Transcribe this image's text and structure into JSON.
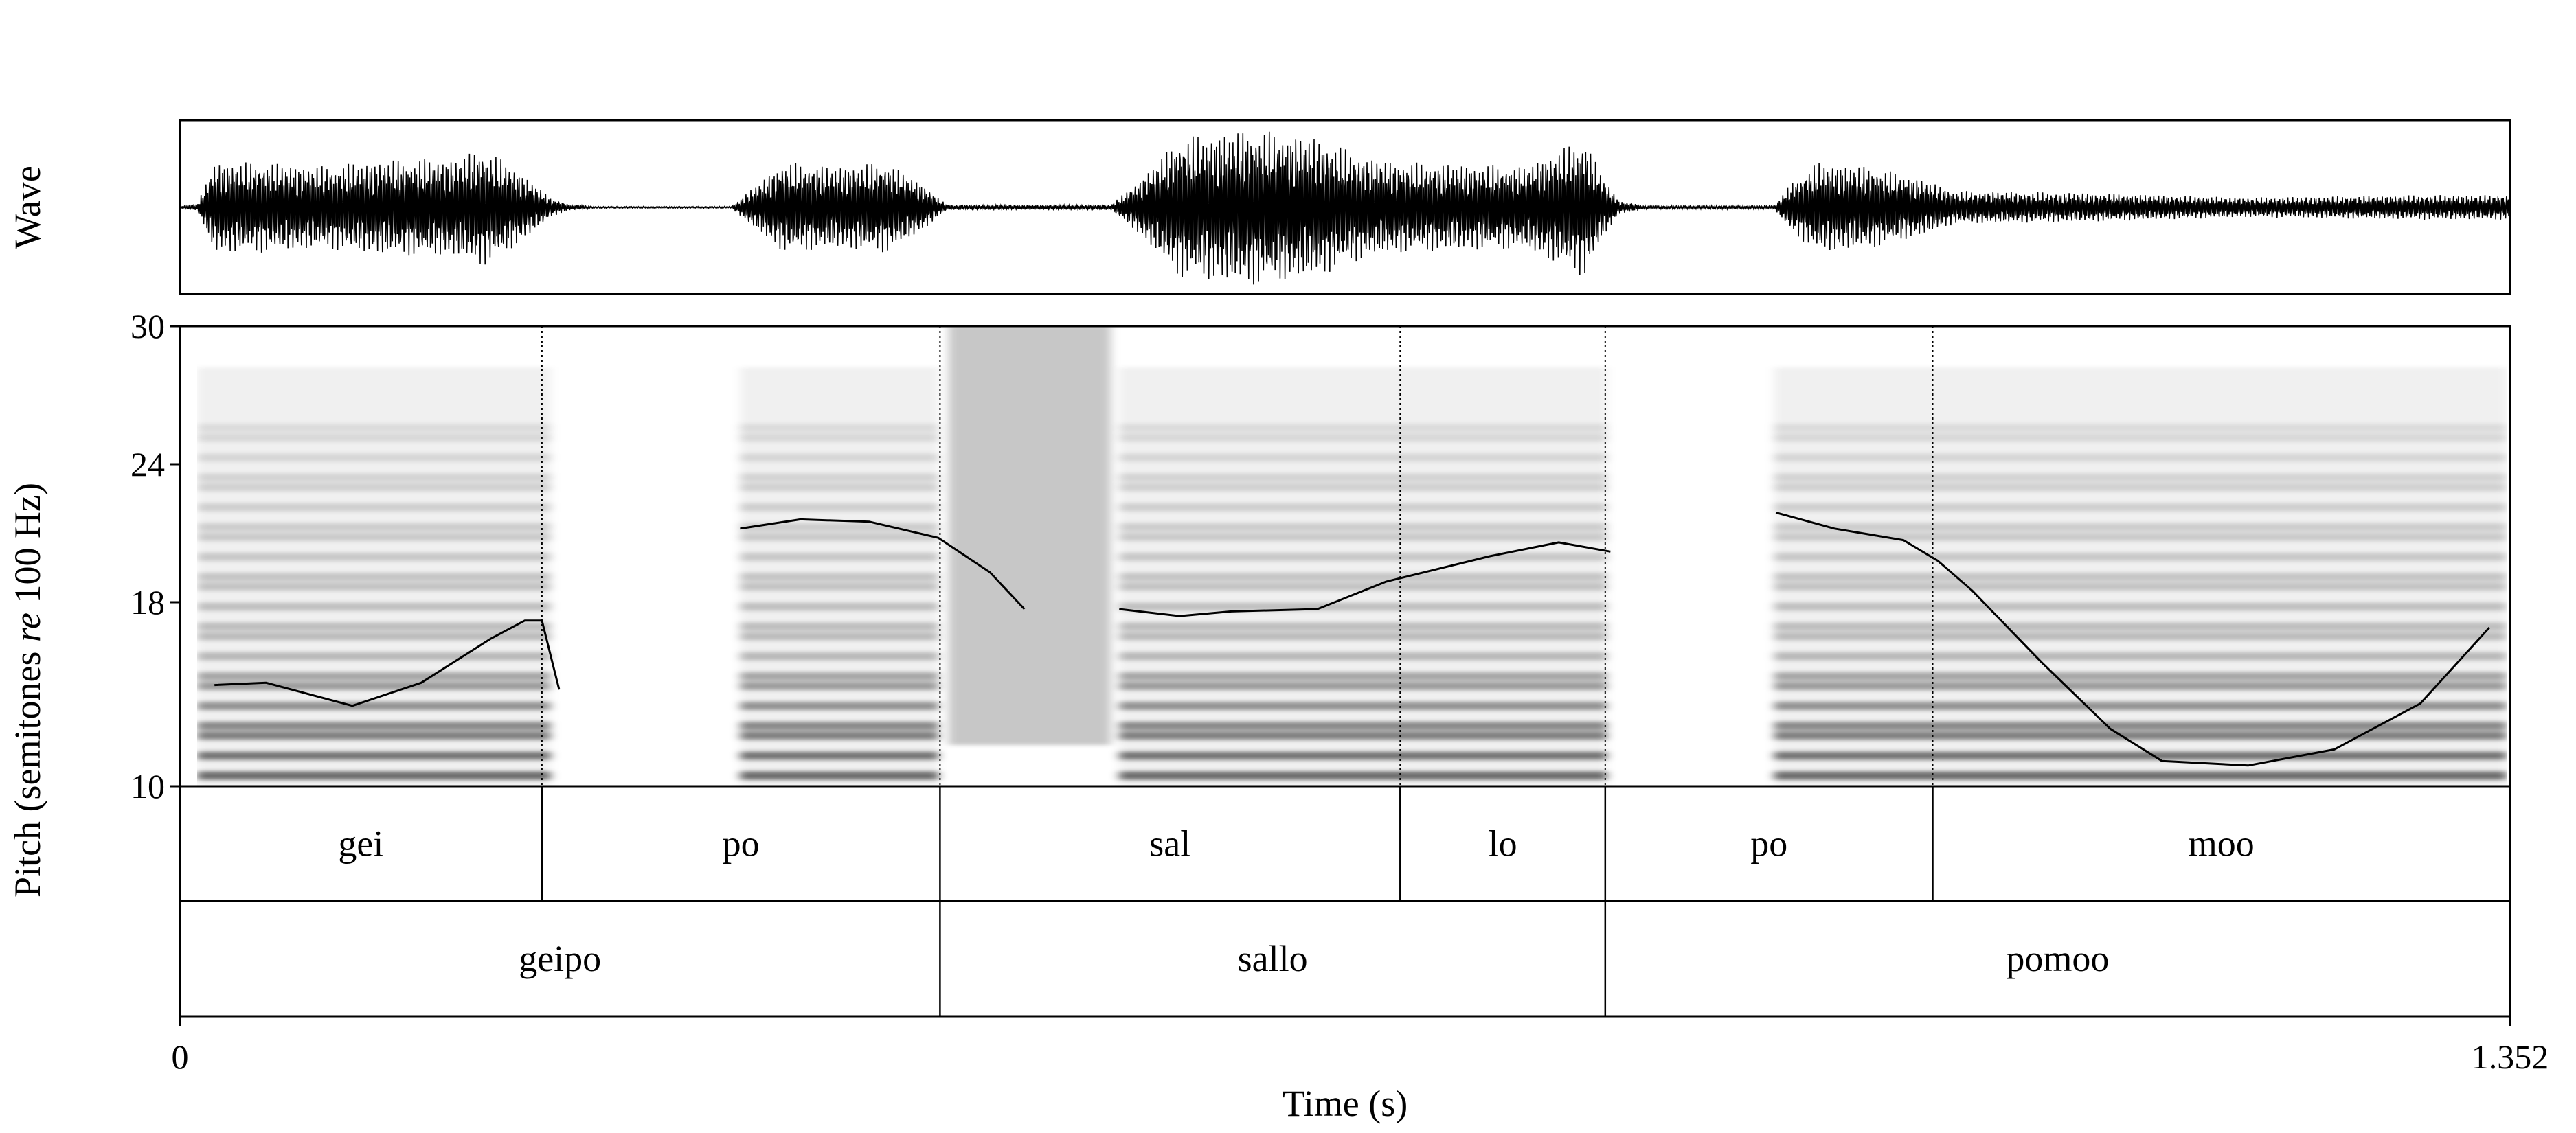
{
  "chart_data": {
    "type": "line",
    "wave_panel": {
      "label": "Wave"
    },
    "pitch_panel": {
      "ylabel_prefix": "Pitch (semitones ",
      "ylabel_italic": "re",
      "ylabel_suffix": " 100 Hz)",
      "ylim": [
        10,
        30
      ],
      "ytick_labels": [
        "30",
        "24",
        "18",
        "10"
      ],
      "series": [
        {
          "x": [
            0.02,
            0.05,
            0.1,
            0.14,
            0.18,
            0.2,
            0.21,
            0.22
          ],
          "y": [
            14.4,
            14.5,
            13.5,
            14.5,
            16.4,
            17.2,
            17.2,
            14.2
          ]
        },
        {
          "x": [
            0.325,
            0.36,
            0.4,
            0.44,
            0.47,
            0.49
          ],
          "y": [
            21.2,
            21.6,
            21.5,
            20.8,
            19.3,
            17.7
          ]
        },
        {
          "x": [
            0.545,
            0.58,
            0.61,
            0.66,
            0.7,
            0.76,
            0.8,
            0.83
          ],
          "y": [
            17.7,
            17.4,
            17.6,
            17.7,
            18.9,
            20.0,
            20.6,
            20.2
          ]
        },
        {
          "x": [
            0.926,
            0.96,
            1.0,
            1.02,
            1.04,
            1.08,
            1.12,
            1.15,
            1.2,
            1.25,
            1.3,
            1.34
          ],
          "y": [
            21.9,
            21.2,
            20.7,
            19.8,
            18.5,
            15.4,
            12.5,
            11.1,
            10.9,
            11.6,
            13.6,
            16.9
          ]
        }
      ]
    },
    "syllables": [
      {
        "label": "gei",
        "start": 0,
        "end": 0.21
      },
      {
        "label": "po",
        "start": 0.21,
        "end": 0.441
      },
      {
        "label": "sal",
        "start": 0.441,
        "end": 0.708
      },
      {
        "label": "lo",
        "start": 0.708,
        "end": 0.827
      },
      {
        "label": "po",
        "start": 0.827,
        "end": 1.017
      },
      {
        "label": "moo",
        "start": 1.017,
        "end": 1.352
      }
    ],
    "words": [
      {
        "label": "geipo",
        "start": 0,
        "end": 0.441
      },
      {
        "label": "sallo",
        "start": 0.441,
        "end": 0.827
      },
      {
        "label": "pomoo",
        "start": 0.827,
        "end": 1.352
      }
    ],
    "xlim": [
      0,
      1.352
    ],
    "xtick_labels": [
      "0",
      "1.352"
    ],
    "xlabel": "Time (s)"
  }
}
